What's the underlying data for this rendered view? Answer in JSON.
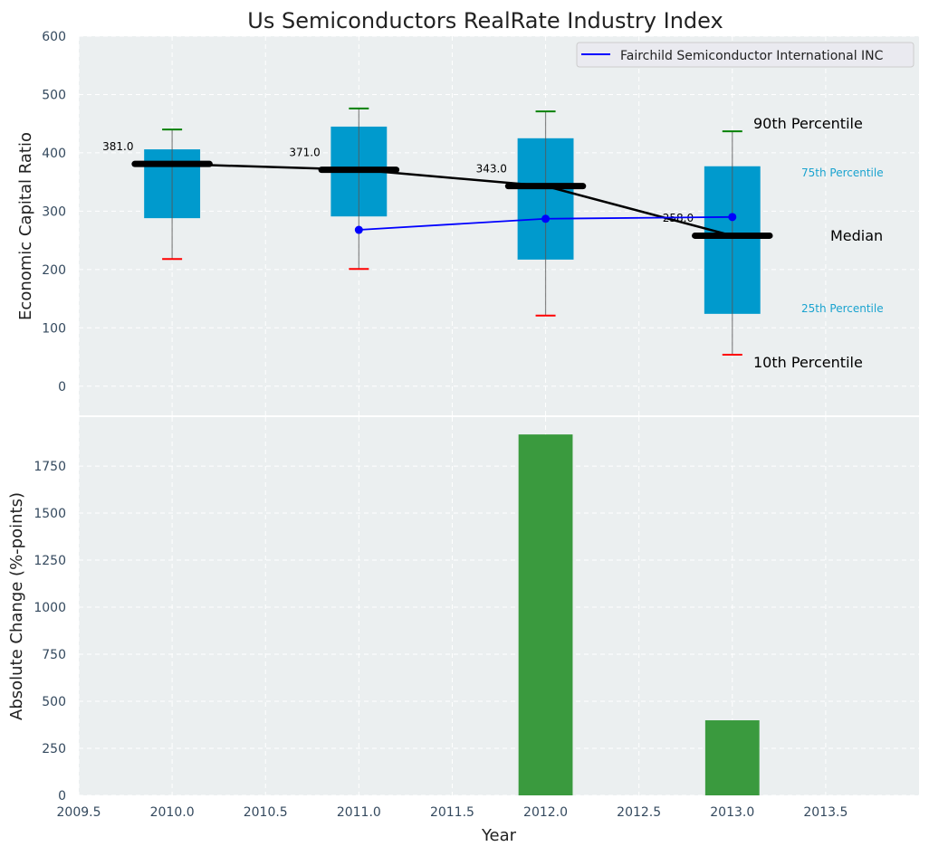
{
  "chart_data": [
    {
      "type": "box",
      "title": "Us Semiconductors RealRate Industry Index",
      "xlabel": "",
      "ylabel": "Economic Capital Ratio",
      "xlim": [
        2009.5,
        2014.0
      ],
      "ylim": [
        -50,
        600
      ],
      "yticks": [
        0,
        100,
        200,
        300,
        400,
        500,
        600
      ],
      "grid": true,
      "legend_position": "top-right",
      "years": [
        2010,
        2011,
        2012,
        2013
      ],
      "p10": [
        218,
        201,
        121,
        54
      ],
      "p25": [
        288,
        291,
        217,
        124
      ],
      "median": [
        381,
        371,
        343,
        258
      ],
      "p75": [
        406,
        445,
        425,
        377
      ],
      "p90": [
        440,
        476,
        471,
        437
      ],
      "median_labels": [
        "381.0",
        "371.0",
        "343.0",
        "258.0"
      ],
      "series": [
        {
          "name": "Fairchild Semiconductor International INC",
          "x": [
            2011,
            2012,
            2013
          ],
          "values": [
            268,
            287,
            290
          ],
          "color": "#0000ff"
        }
      ],
      "annotations": {
        "p90": "90th Percentile",
        "p75": "75th Percentile",
        "median": "Median",
        "p25": "25th Percentile",
        "p10": "10th Percentile"
      },
      "colors": {
        "box": "#009acd",
        "median": "#000000",
        "p90": "#008000",
        "p10": "#ff0000",
        "bg": "#ebeff0"
      }
    },
    {
      "type": "bar",
      "xlabel": "Year",
      "ylabel": "Absolute Change (%-points)",
      "xlim": [
        2009.5,
        2014.0
      ],
      "ylim": [
        0,
        2010
      ],
      "xticks": [
        2009.5,
        2010.0,
        2010.5,
        2011.0,
        2011.5,
        2012.0,
        2012.5,
        2013.0,
        2013.5
      ],
      "xtick_labels": [
        "2009.5",
        "2010.0",
        "2010.5",
        "2011.0",
        "2011.5",
        "2012.0",
        "2012.5",
        "2013.0",
        "2013.5"
      ],
      "yticks": [
        0,
        250,
        500,
        750,
        1000,
        1250,
        1500,
        1750
      ],
      "categories": [
        2012,
        2013
      ],
      "values": [
        1918,
        399
      ],
      "color": "#3a9a3e"
    }
  ]
}
